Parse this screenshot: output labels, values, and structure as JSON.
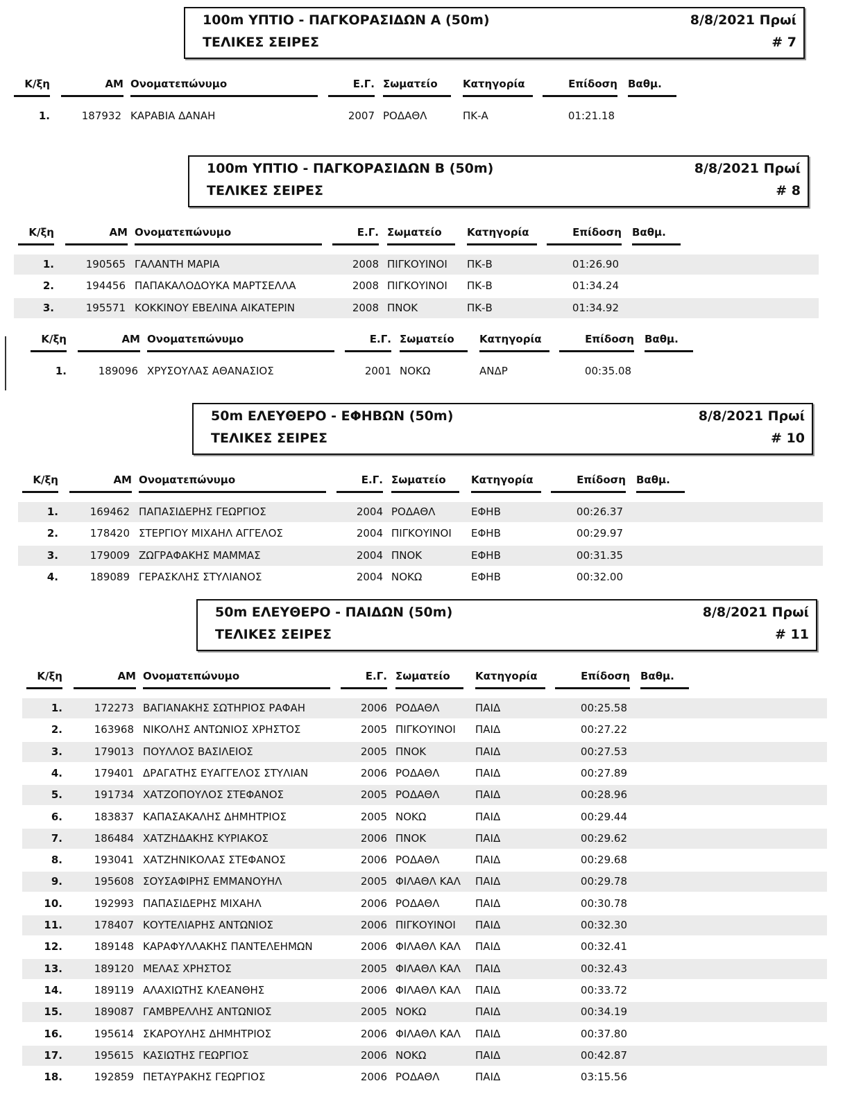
{
  "columns": [
    "Κ/ξη",
    "ΑΜ",
    "Ονοματεπώνυμο",
    "Ε.Γ.",
    "Σωματείο",
    "Κατηγορία",
    "Επίδοση",
    "Βαθμ."
  ],
  "sections": [
    {
      "title": "100m ΥΠΤΙΟ - ΠΑΓΚΟΡΑΣΙΔΩΝ Α  (50m)",
      "subtitle": "ΤΕΛΙΚΕΣ ΣΕΙΡΕΣ",
      "date": "8/8/2021 Πρωί",
      "number": "# 7",
      "rows": [
        [
          "1.",
          "187932",
          "ΚΑΡΑΒΙΑ ΔΑΝΑΗ",
          "2007",
          "ΡΟΔΑΘΛ",
          "ΠΚ-Α",
          "01:21.18"
        ]
      ]
    },
    {
      "title": "100m ΥΠΤΙΟ - ΠΑΓΚΟΡΑΣΙΔΩΝ Β  (50m)",
      "subtitle": "ΤΕΛΙΚΕΣ ΣΕΙΡΕΣ",
      "date": "8/8/2021 Πρωί",
      "number": "# 8",
      "rows": [
        [
          "1.",
          "190565",
          "ΓΑΛΑΝΤΗ ΜΑΡΙΑ",
          "2008",
          "ΠΙΓΚΟΥΙΝΟΙ",
          "ΠΚ-Β",
          "01:26.90"
        ],
        [
          "2.",
          "194456",
          "ΠΑΠΑΚΑΛΟΔΟΥΚΑ ΜΑΡΤΣΕΛΛΑ",
          "2008",
          "ΠΙΓΚΟΥΙΝΟΙ",
          "ΠΚ-Β",
          "01:34.24"
        ],
        [
          "3.",
          "195571",
          "ΚΟΚΚΙΝΟΥ ΕΒΕΛΙΝΑ ΑΙΚΑΤΕΡΙΝ",
          "2008",
          "ΠΝΟΚ",
          "ΠΚ-Β",
          "01:34.92"
        ]
      ]
    },
    {
      "rows": [
        [
          "1.",
          "189096",
          "ΧΡΥΣΟΥΛΑΣ ΑΘΑΝΑΣΙΟΣ",
          "2001",
          "ΝΟΚΩ",
          "ΑΝΔΡ",
          "00:35.08"
        ]
      ]
    },
    {
      "title": "50m ΕΛΕΥΘΕΡΟ - ΕΦΗΒΩΝ  (50m)",
      "subtitle": "ΤΕΛΙΚΕΣ ΣΕΙΡΕΣ",
      "date": "8/8/2021 Πρωί",
      "number": "# 10",
      "rows": [
        [
          "1.",
          "169462",
          "ΠΑΠΑΣΙΔΕΡΗΣ ΓΕΩΡΓΙΟΣ",
          "2004",
          "ΡΟΔΑΘΛ",
          "ΕΦΗΒ",
          "00:26.37"
        ],
        [
          "2.",
          "178420",
          "ΣΤΕΡΓΙΟΥ ΜΙΧΑΗΛ ΑΓΓΕΛΟΣ",
          "2004",
          "ΠΙΓΚΟΥΙΝΟΙ",
          "ΕΦΗΒ",
          "00:29.97"
        ],
        [
          "3.",
          "179009",
          "ΖΩΓΡΑΦΑΚΗΣ ΜΑΜΜΑΣ",
          "2004",
          "ΠΝΟΚ",
          "ΕΦΗΒ",
          "00:31.35"
        ],
        [
          "4.",
          "189089",
          "ΓΕΡΑΣΚΛΗΣ ΣΤΥΛΙΑΝΟΣ",
          "2004",
          "ΝΟΚΩ",
          "ΕΦΗΒ",
          "00:32.00"
        ]
      ]
    },
    {
      "title": "50m ΕΛΕΥΘΕΡΟ - ΠΑΙΔΩΝ  (50m)",
      "subtitle": "ΤΕΛΙΚΕΣ ΣΕΙΡΕΣ",
      "date": "8/8/2021 Πρωί",
      "number": "# 11",
      "rows": [
        [
          "1.",
          "172273",
          "ΒΑΓΙΑΝΑΚΗΣ ΣΩΤΗΡΙΟΣ ΡΑΦΑΗ",
          "2006",
          "ΡΟΔΑΘΛ",
          "ΠΑΙΔ",
          "00:25.58"
        ],
        [
          "2.",
          "163968",
          "ΝΙΚΟΛΗΣ ΑΝΤΩΝΙΟΣ ΧΡΗΣΤΟΣ",
          "2005",
          "ΠΙΓΚΟΥΙΝΟΙ",
          "ΠΑΙΔ",
          "00:27.22"
        ],
        [
          "3.",
          "179013",
          "ΠΟΥΛΛΟΣ ΒΑΣΙΛΕΙΟΣ",
          "2005",
          "ΠΝΟΚ",
          "ΠΑΙΔ",
          "00:27.53"
        ],
        [
          "4.",
          "179401",
          "ΔΡΑΓΑΤΗΣ ΕΥΑΓΓΕΛΟΣ ΣΤΥΛΙΑΝ",
          "2006",
          "ΡΟΔΑΘΛ",
          "ΠΑΙΔ",
          "00:27.89"
        ],
        [
          "5.",
          "191734",
          "ΧΑΤΖΟΠΟΥΛΟΣ ΣΤΕΦΑΝΟΣ",
          "2005",
          "ΡΟΔΑΘΛ",
          "ΠΑΙΔ",
          "00:28.96"
        ],
        [
          "6.",
          "183837",
          "ΚΑΠΑΣΑΚΑΛΗΣ ΔΗΜΗΤΡΙΟΣ",
          "2005",
          "ΝΟΚΩ",
          "ΠΑΙΔ",
          "00:29.44"
        ],
        [
          "7.",
          "186484",
          "ΧΑΤΖΗΔΑΚΗΣ ΚΥΡΙΑΚΟΣ",
          "2006",
          "ΠΝΟΚ",
          "ΠΑΙΔ",
          "00:29.62"
        ],
        [
          "8.",
          "193041",
          "ΧΑΤΖΗΝΙΚΟΛΑΣ ΣΤΕΦΑΝΟΣ",
          "2006",
          "ΡΟΔΑΘΛ",
          "ΠΑΙΔ",
          "00:29.68"
        ],
        [
          "9.",
          "195608",
          "ΣΟΥΣΑΦΙΡΗΣ ΕΜΜΑΝΟΥΗΛ",
          "2005",
          "ΦΙΛΑΘΛ ΚΑΛ",
          "ΠΑΙΔ",
          "00:29.78"
        ],
        [
          "10.",
          "192993",
          "ΠΑΠΑΣΙΔΕΡΗΣ ΜΙΧΑΗΛ",
          "2006",
          "ΡΟΔΑΘΛ",
          "ΠΑΙΔ",
          "00:30.78"
        ],
        [
          "11.",
          "178407",
          "ΚΟΥΤΕΛΙΑΡΗΣ ΑΝΤΩΝΙΟΣ",
          "2006",
          "ΠΙΓΚΟΥΙΝΟΙ",
          "ΠΑΙΔ",
          "00:32.30"
        ],
        [
          "12.",
          "189148",
          "ΚΑΡΑΦΥΛΛΑΚΗΣ ΠΑΝΤΕΛΕΗΜΩΝ",
          "2006",
          "ΦΙΛΑΘΛ ΚΑΛ",
          "ΠΑΙΔ",
          "00:32.41"
        ],
        [
          "13.",
          "189120",
          "ΜΕΛΑΣ ΧΡΗΣΤΟΣ",
          "2005",
          "ΦΙΛΑΘΛ ΚΑΛ",
          "ΠΑΙΔ",
          "00:32.43"
        ],
        [
          "14.",
          "189119",
          "ΑΛΑΧΙΩΤΗΣ ΚΛΕΑΝΘΗΣ",
          "2006",
          "ΦΙΛΑΘΛ ΚΑΛ",
          "ΠΑΙΔ",
          "00:33.72"
        ],
        [
          "15.",
          "189087",
          "ΓΑΜΒΡΕΛΛΗΣ ΑΝΤΩΝΙΟΣ",
          "2005",
          "ΝΟΚΩ",
          "ΠΑΙΔ",
          "00:34.19"
        ],
        [
          "16.",
          "195614",
          "ΣΚΑΡΟΥΛΗΣ ΔΗΜΗΤΡΙΟΣ",
          "2006",
          "ΦΙΛΑΘΛ ΚΑΛ",
          "ΠΑΙΔ",
          "00:37.80"
        ],
        [
          "17.",
          "195615",
          "ΚΑΣΙΩΤΗΣ ΓΕΩΡΓΙΟΣ",
          "2006",
          "ΝΟΚΩ",
          "ΠΑΙΔ",
          "00:42.87"
        ],
        [
          "18.",
          "192859",
          "ΠΕΤΑΥΡΑΚΗΣ ΓΕΩΡΓΙΟΣ",
          "2006",
          "ΡΟΔΑΘΛ",
          "ΠΑΙΔ",
          "03:15.56"
        ]
      ]
    }
  ]
}
